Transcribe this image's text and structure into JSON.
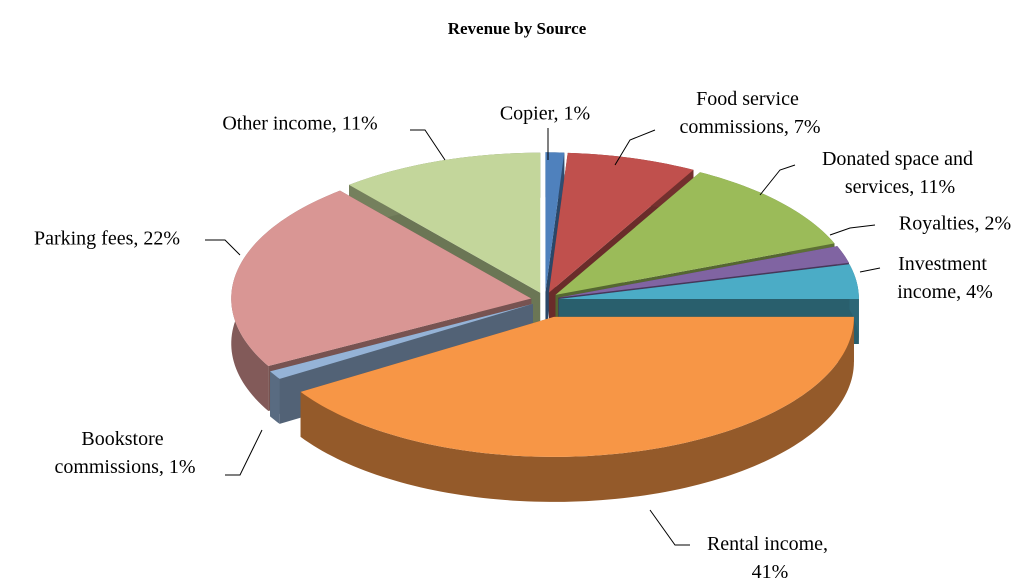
{
  "chart_data": {
    "type": "pie",
    "title": "Revenue by Source",
    "values": [
      1,
      7,
      11,
      2,
      4,
      41,
      1,
      22,
      11
    ],
    "value_labels": [
      "Copier, 1%",
      "Food service commissions, 7%",
      "Donated space and services, 11%",
      "Royalties, 2%",
      "Investment income, 4%",
      "Rental income, 41%",
      "Bookstore commissions, 1%",
      "Parking fees, 22%",
      "Other income, 11%"
    ],
    "colors": [
      "#4f81bd",
      "#c0504d",
      "#9bbb59",
      "#8064a2",
      "#4bacc6",
      "#f79646",
      "#95b3d7",
      "#d99694",
      "#c3d69b"
    ]
  }
}
